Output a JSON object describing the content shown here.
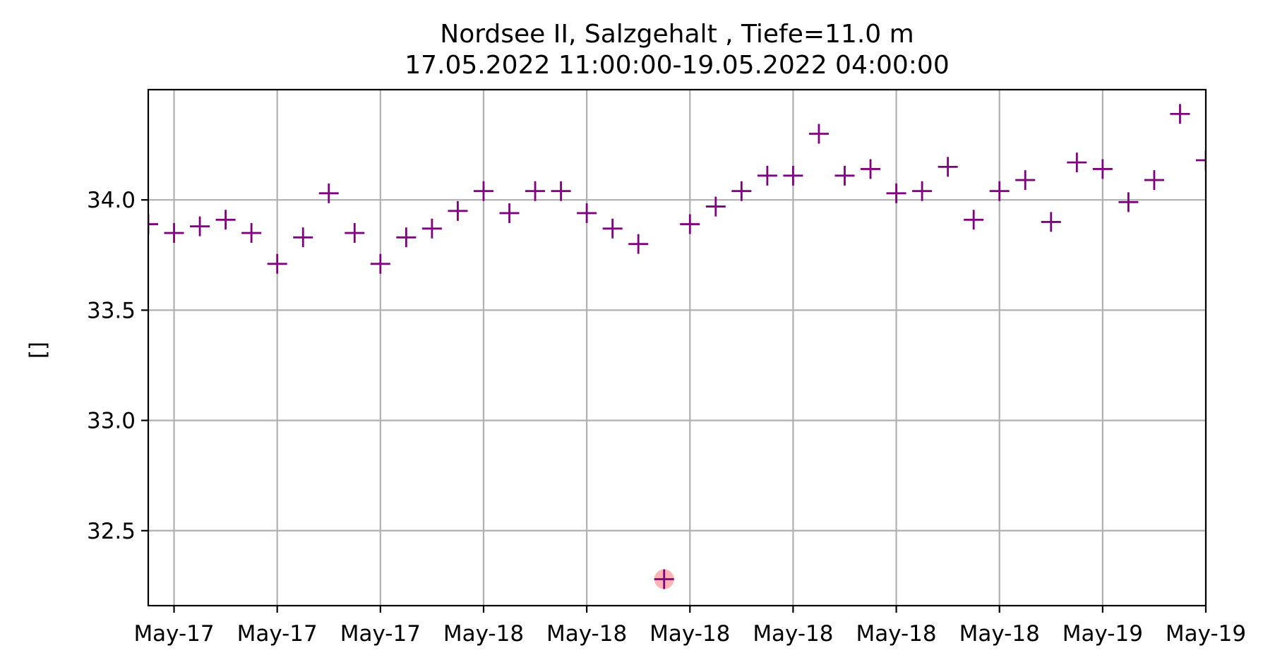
{
  "chart_data": {
    "type": "scatter",
    "title_line1": "Nordsee II, Salzgehalt , Tiefe=11.0 m",
    "title_line2": "17.05.2022 11:00:00-19.05.2022 04:00:00",
    "xlabel": "",
    "ylabel": "[]",
    "xlim": [
      "2022-05-17T11:00:00",
      "2022-05-19T04:00:00"
    ],
    "ylim": [
      32.16,
      34.5
    ],
    "grid": true,
    "marker": "plus",
    "marker_color": "#800080",
    "highlight_color": "#ff9999",
    "y_ticks": [
      {
        "value": 32.5,
        "label": "32.5"
      },
      {
        "value": 33.0,
        "label": "33.0"
      },
      {
        "value": 33.5,
        "label": "33.5"
      },
      {
        "value": 34.0,
        "label": "34.0"
      }
    ],
    "x_ticks": [
      {
        "value": "2022-05-17T12:00:00",
        "label": "May-17"
      },
      {
        "value": "2022-05-17T16:00:00",
        "label": "May-17"
      },
      {
        "value": "2022-05-17T20:00:00",
        "label": "May-17"
      },
      {
        "value": "2022-05-18T00:00:00",
        "label": "May-18"
      },
      {
        "value": "2022-05-18T04:00:00",
        "label": "May-18"
      },
      {
        "value": "2022-05-18T08:00:00",
        "label": "May-18"
      },
      {
        "value": "2022-05-18T12:00:00",
        "label": "May-18"
      },
      {
        "value": "2022-05-18T16:00:00",
        "label": "May-18"
      },
      {
        "value": "2022-05-18T20:00:00",
        "label": "May-18"
      },
      {
        "value": "2022-05-19T00:00:00",
        "label": "May-19"
      },
      {
        "value": "2022-05-19T04:00:00",
        "label": "May-19"
      }
    ],
    "points": [
      {
        "x": "2022-05-17T11:00:00",
        "y": 33.89
      },
      {
        "x": "2022-05-17T12:00:00",
        "y": 33.85
      },
      {
        "x": "2022-05-17T13:00:00",
        "y": 33.88
      },
      {
        "x": "2022-05-17T14:00:00",
        "y": 33.91
      },
      {
        "x": "2022-05-17T15:00:00",
        "y": 33.85
      },
      {
        "x": "2022-05-17T16:00:00",
        "y": 33.71
      },
      {
        "x": "2022-05-17T17:00:00",
        "y": 33.83
      },
      {
        "x": "2022-05-17T18:00:00",
        "y": 34.03
      },
      {
        "x": "2022-05-17T19:00:00",
        "y": 33.85
      },
      {
        "x": "2022-05-17T20:00:00",
        "y": 33.71
      },
      {
        "x": "2022-05-17T21:00:00",
        "y": 33.83
      },
      {
        "x": "2022-05-17T22:00:00",
        "y": 33.87
      },
      {
        "x": "2022-05-17T23:00:00",
        "y": 33.95
      },
      {
        "x": "2022-05-18T00:00:00",
        "y": 34.04
      },
      {
        "x": "2022-05-18T01:00:00",
        "y": 33.94
      },
      {
        "x": "2022-05-18T02:00:00",
        "y": 34.04
      },
      {
        "x": "2022-05-18T03:00:00",
        "y": 34.04
      },
      {
        "x": "2022-05-18T04:00:00",
        "y": 33.94
      },
      {
        "x": "2022-05-18T05:00:00",
        "y": 33.87
      },
      {
        "x": "2022-05-18T06:00:00",
        "y": 33.8
      },
      {
        "x": "2022-05-18T07:00:00",
        "y": 32.28,
        "flagged": true
      },
      {
        "x": "2022-05-18T08:00:00",
        "y": 33.89
      },
      {
        "x": "2022-05-18T09:00:00",
        "y": 33.97
      },
      {
        "x": "2022-05-18T10:00:00",
        "y": 34.04
      },
      {
        "x": "2022-05-18T11:00:00",
        "y": 34.11
      },
      {
        "x": "2022-05-18T12:00:00",
        "y": 34.11
      },
      {
        "x": "2022-05-18T13:00:00",
        "y": 34.3
      },
      {
        "x": "2022-05-18T14:00:00",
        "y": 34.11
      },
      {
        "x": "2022-05-18T15:00:00",
        "y": 34.14
      },
      {
        "x": "2022-05-18T16:00:00",
        "y": 34.03
      },
      {
        "x": "2022-05-18T17:00:00",
        "y": 34.04
      },
      {
        "x": "2022-05-18T18:00:00",
        "y": 34.15
      },
      {
        "x": "2022-05-18T19:00:00",
        "y": 33.91
      },
      {
        "x": "2022-05-18T20:00:00",
        "y": 34.04
      },
      {
        "x": "2022-05-18T21:00:00",
        "y": 34.09
      },
      {
        "x": "2022-05-18T22:00:00",
        "y": 33.9
      },
      {
        "x": "2022-05-18T23:00:00",
        "y": 34.17
      },
      {
        "x": "2022-05-19T00:00:00",
        "y": 34.14
      },
      {
        "x": "2022-05-19T01:00:00",
        "y": 33.99
      },
      {
        "x": "2022-05-19T02:00:00",
        "y": 34.09
      },
      {
        "x": "2022-05-19T03:00:00",
        "y": 34.39
      },
      {
        "x": "2022-05-19T04:00:00",
        "y": 34.18
      }
    ]
  }
}
